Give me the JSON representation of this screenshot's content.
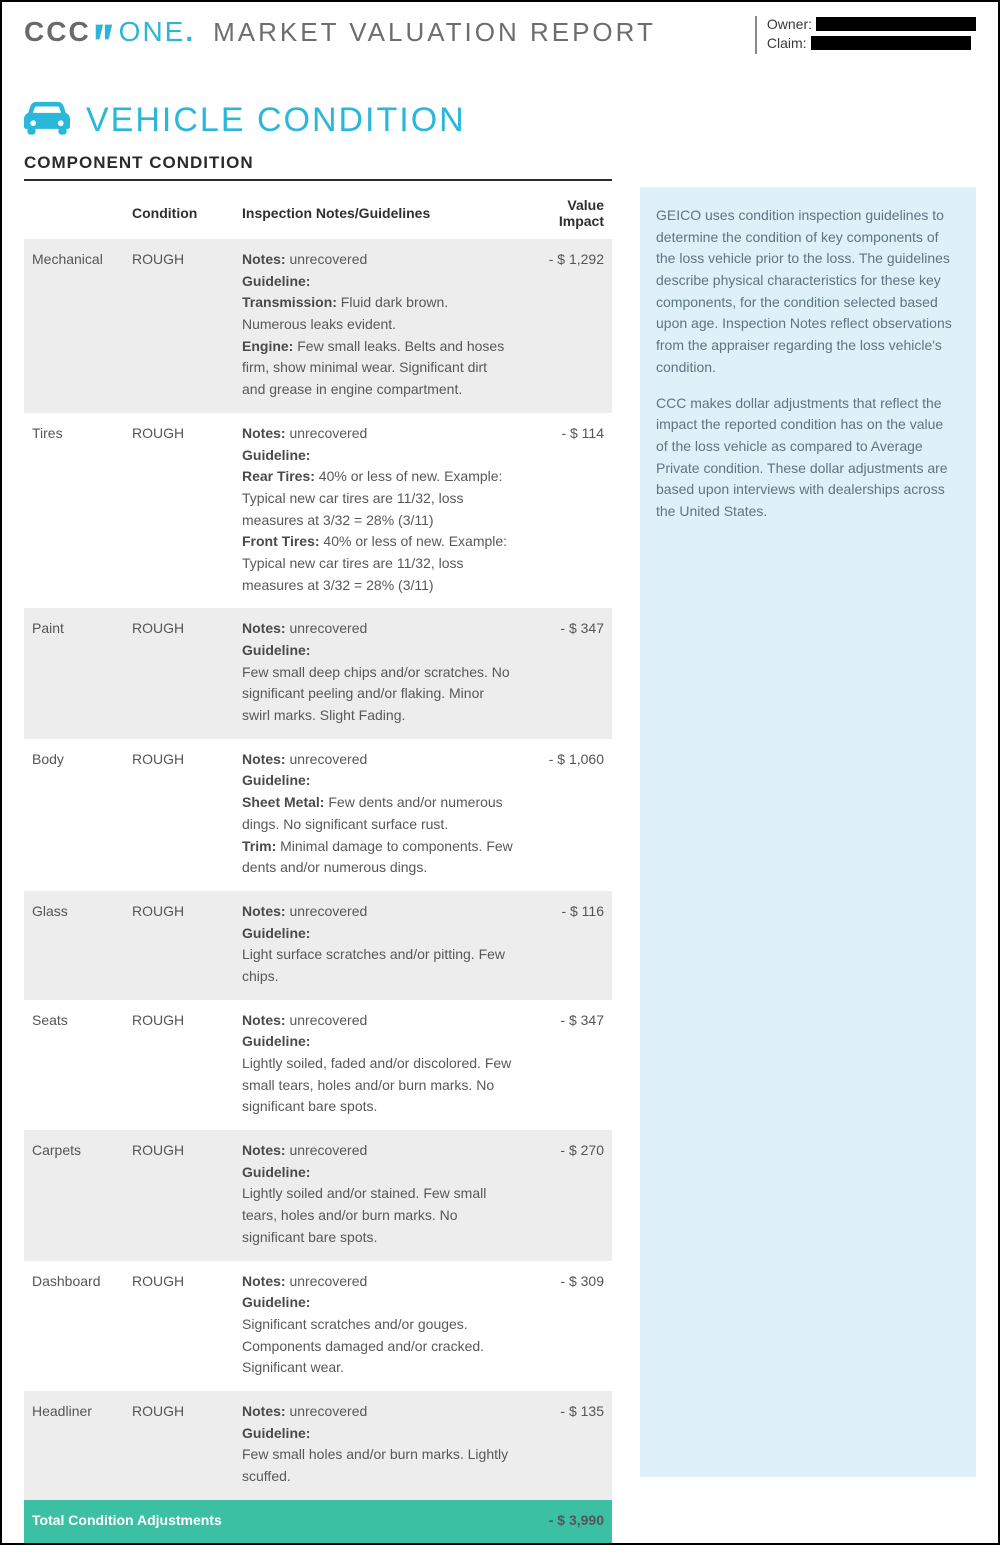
{
  "header": {
    "logo_ccc": "CCC",
    "logo_one": "ONE",
    "report_title": "MARKET VALUATION REPORT",
    "owner_label": "Owner:",
    "claim_label": "Claim:"
  },
  "section": {
    "title": "VEHICLE CONDITION",
    "subhead": "COMPONENT CONDITION"
  },
  "columns": {
    "component": "",
    "condition": "Condition",
    "notes": "Inspection Notes/Guidelines",
    "impact": "Value Impact"
  },
  "labels": {
    "notes": "Notes:",
    "guideline": "Guideline:"
  },
  "rows": [
    {
      "component": "Mechanical",
      "condition": "ROUGH",
      "notes_value": "unrecovered",
      "guideline_parts": [
        {
          "label": "Transmission:",
          "text": "Fluid dark brown. Numerous leaks evident."
        },
        {
          "label": "Engine:",
          "text": "Few small leaks. Belts and hoses firm, show minimal wear. Significant dirt and grease in engine compartment."
        }
      ],
      "impact": "- $ 1,292",
      "shade": true
    },
    {
      "component": "Tires",
      "condition": "ROUGH",
      "notes_value": "unrecovered",
      "guideline_parts": [
        {
          "label": "Rear Tires:",
          "text": "40% or less of new. Example: Typical new car tires are 11/32, loss measures at 3/32 = 28% (3/11)"
        },
        {
          "label": "Front Tires:",
          "text": "40% or less of new. Example: Typical new car tires are 11/32, loss measures at 3/32 = 28% (3/11)"
        }
      ],
      "impact": "- $ 114",
      "shade": false
    },
    {
      "component": "Paint",
      "condition": "ROUGH",
      "notes_value": "unrecovered",
      "guideline_parts": [
        {
          "label": "",
          "text": "Few small deep chips and/or scratches. No significant peeling and/or flaking. Minor swirl marks. Slight Fading."
        }
      ],
      "impact": "- $ 347",
      "shade": true
    },
    {
      "component": "Body",
      "condition": "ROUGH",
      "notes_value": "unrecovered",
      "guideline_parts": [
        {
          "label": "Sheet Metal:",
          "text": "Few dents and/or numerous dings. No significant surface rust."
        },
        {
          "label": "Trim:",
          "text": "Minimal damage to components. Few dents and/or numerous dings."
        }
      ],
      "impact": "- $ 1,060",
      "shade": false
    },
    {
      "component": "Glass",
      "condition": "ROUGH",
      "notes_value": "unrecovered",
      "guideline_parts": [
        {
          "label": "",
          "text": "Light surface scratches and/or pitting. Few chips."
        }
      ],
      "impact": "- $ 116",
      "shade": true
    },
    {
      "component": "Seats",
      "condition": "ROUGH",
      "notes_value": "unrecovered",
      "guideline_parts": [
        {
          "label": "",
          "text": "Lightly soiled, faded and/or discolored. Few small tears, holes and/or burn marks. No significant bare spots."
        }
      ],
      "impact": "- $ 347",
      "shade": false
    },
    {
      "component": "Carpets",
      "condition": "ROUGH",
      "notes_value": "unrecovered",
      "guideline_parts": [
        {
          "label": "",
          "text": "Lightly soiled and/or stained. Few small tears, holes and/or burn marks. No significant bare spots."
        }
      ],
      "impact": "- $ 270",
      "shade": true
    },
    {
      "component": "Dashboard",
      "condition": "ROUGH",
      "notes_value": "unrecovered",
      "guideline_parts": [
        {
          "label": "",
          "text": "Significant scratches and/or gouges. Components damaged and/or cracked. Significant wear."
        }
      ],
      "impact": "- $ 309",
      "shade": false
    },
    {
      "component": "Headliner",
      "condition": "ROUGH",
      "notes_value": "unrecovered",
      "guideline_parts": [
        {
          "label": "",
          "text": "Few small holes and/or burn marks. Lightly scuffed."
        }
      ],
      "impact": "- $ 135",
      "shade": true
    }
  ],
  "total": {
    "label": "Total Condition Adjustments",
    "value": "- $ 3,990"
  },
  "sidebar": {
    "p1": "GEICO uses condition inspection guidelines to determine the condition of key components of the loss vehicle prior to the loss. The guidelines describe physical characteristics for these key components, for the condition selected based upon age. Inspection Notes reflect observations from the appraiser regarding the loss vehicle's condition.",
    "p2": "CCC makes dollar adjustments that reflect the impact the reported condition has on the value of the loss vehicle as compared to Average Private condition. These dollar adjustments are based upon interviews with dealerships across the United States."
  },
  "colors": {
    "accent": "#29b7da",
    "total_bg": "#3cc0a4",
    "callout_bg": "#def0f8",
    "row_shade": "#ededed"
  }
}
